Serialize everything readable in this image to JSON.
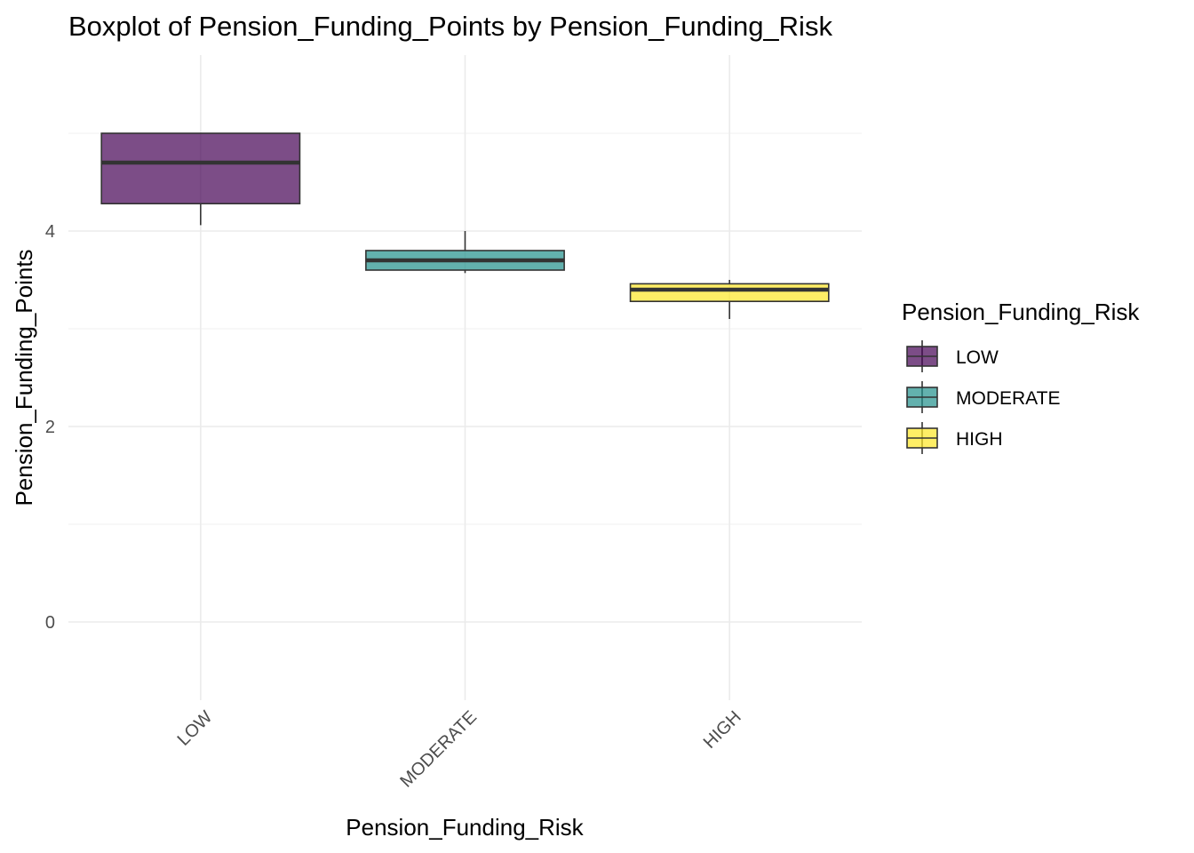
{
  "chart_data": {
    "type": "boxplot",
    "title": "Boxplot of Pension_Funding_Points by Pension_Funding_Risk",
    "xlabel": "Pension_Funding_Risk",
    "ylabel": "Pension_Funding_Points",
    "categories": [
      "LOW",
      "MODERATE",
      "HIGH"
    ],
    "ylim": [
      -0.75,
      5.8
    ],
    "yticks": [
      0,
      2,
      4
    ],
    "grid": true,
    "boxes": [
      {
        "name": "LOW",
        "whisker_low": 4.06,
        "q1": 4.28,
        "median": 4.7,
        "q3": 5.0,
        "whisker_high": 5.0,
        "color": "#440154"
      },
      {
        "name": "MODERATE",
        "whisker_low": 3.57,
        "q1": 3.6,
        "median": 3.7,
        "q3": 3.8,
        "whisker_high": 4.0,
        "color": "#21908C"
      },
      {
        "name": "HIGH",
        "whisker_low": 3.1,
        "q1": 3.28,
        "median": 3.4,
        "q3": 3.46,
        "whisker_high": 3.5,
        "color": "#FDE725"
      }
    ],
    "fill_alpha": 0.7,
    "legend": {
      "title": "Pension_Funding_Risk",
      "placement": "right",
      "entries": [
        "LOW",
        "MODERATE",
        "HIGH"
      ]
    }
  }
}
